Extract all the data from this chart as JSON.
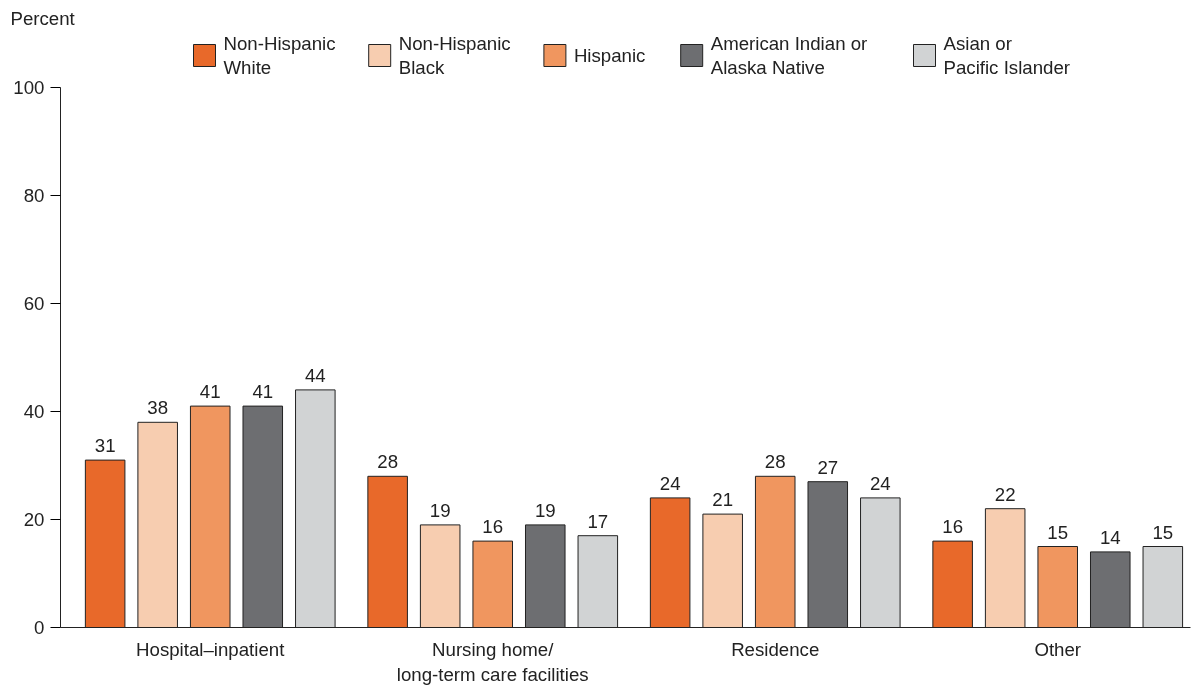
{
  "chart_data": {
    "type": "bar",
    "ylabel": "Percent",
    "categories": [
      "Hospital–inpatient",
      "Nursing home/\nlong-term care facilities",
      "Residence",
      "Other"
    ],
    "series": [
      {
        "name": "Non-Hispanic\nWhite",
        "color": "#e8692a",
        "values": [
          31,
          28,
          24,
          16
        ]
      },
      {
        "name": "Non-Hispanic\nBlack",
        "color": "#f7cdb0",
        "values": [
          38,
          19,
          21,
          22
        ]
      },
      {
        "name": "Hispanic",
        "color": "#f0965f",
        "values": [
          41,
          16,
          28,
          15
        ]
      },
      {
        "name": "American Indian or\nAlaska Native",
        "color": "#6d6e71",
        "values": [
          41,
          19,
          27,
          14
        ]
      },
      {
        "name": "Asian or\nPacific Islander",
        "color": "#d1d3d4",
        "values": [
          44,
          17,
          24,
          15
        ]
      }
    ],
    "ylim": [
      0,
      100
    ],
    "yticks": [
      0,
      20,
      40,
      60,
      80,
      100
    ],
    "data_labels": true,
    "grid": false,
    "legend": "top"
  }
}
